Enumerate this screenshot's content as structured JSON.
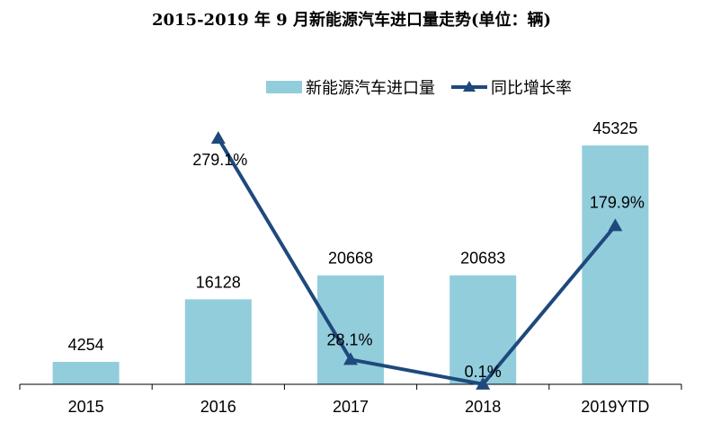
{
  "chart_data": {
    "type": "bar",
    "title": "2015-2019 年 9 月新能源汽车进口量走势(单位：辆)",
    "categories": [
      "2015",
      "2016",
      "2017",
      "2018",
      "2019YTD"
    ],
    "series": [
      {
        "name": "新能源汽车进口量",
        "kind": "bar",
        "values": [
          4254,
          16128,
          20668,
          20683,
          45325
        ],
        "labels": [
          "4254",
          "16128",
          "20668",
          "20683",
          "45325"
        ],
        "color": "#92CDDC"
      },
      {
        "name": "同比增长率",
        "kind": "line",
        "x": [
          "2016",
          "2017",
          "2018",
          "2019YTD"
        ],
        "values": [
          279.1,
          28.1,
          0.1,
          179.9
        ],
        "labels": [
          "279.1%",
          "28.1%",
          "0.1%",
          "179.9%"
        ],
        "color": "#1F497D"
      }
    ],
    "ylim_bars": [
      0,
      45325
    ],
    "ylim_line": [
      0,
      279.1
    ],
    "legend_position": "top-right",
    "grid": false
  }
}
